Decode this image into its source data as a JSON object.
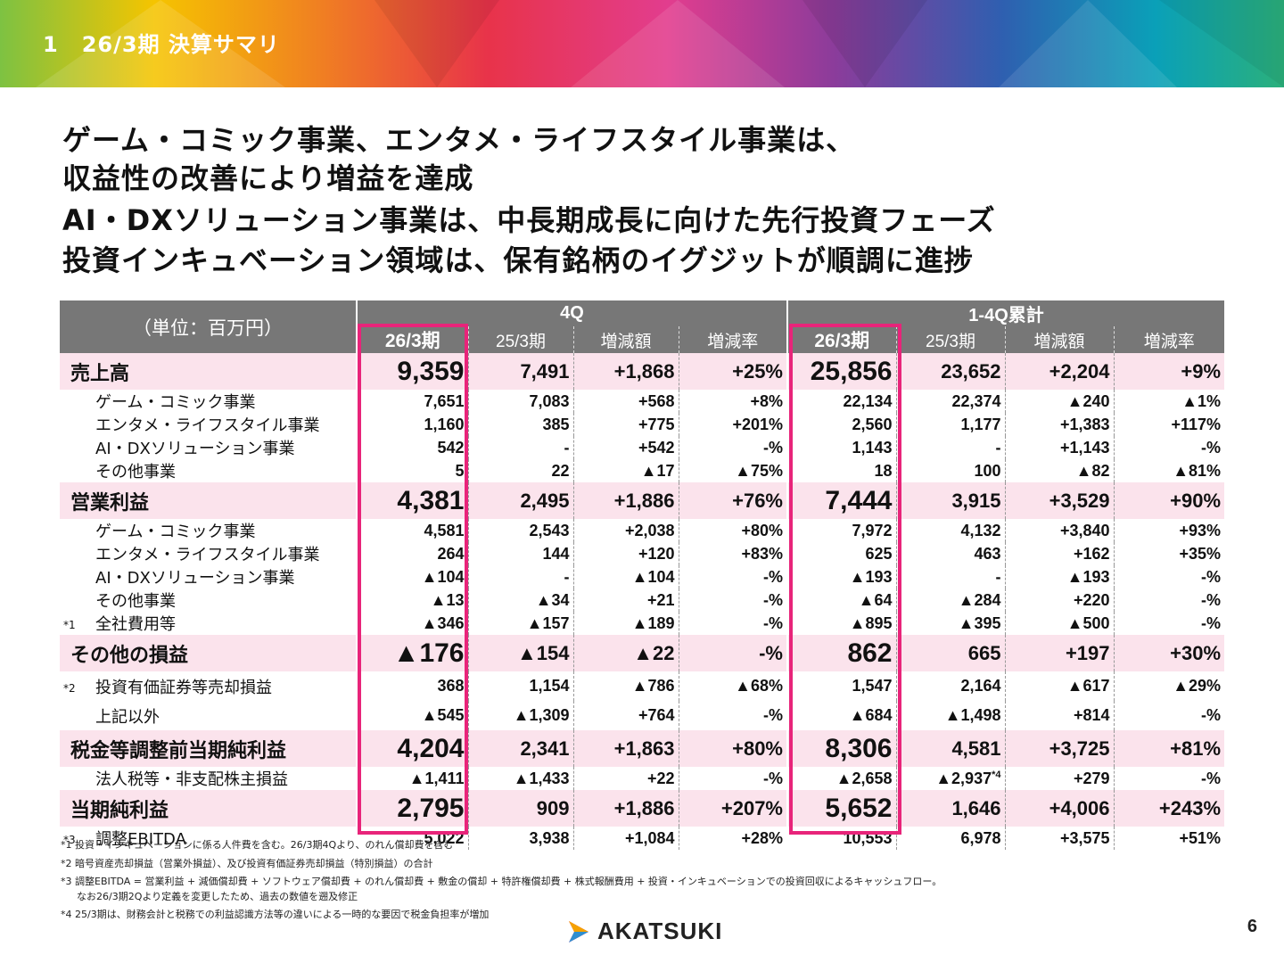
{
  "banner": {
    "section_number": "1",
    "title": "26/3期 決算サマリ"
  },
  "headlines": [
    "ゲーム・コミック事業、エンタメ・ライフスタイル事業は、",
    "収益性の改善により増益を達成",
    "AI・DXソリューション事業は、中長期成長に向けた先行投資フェーズ",
    "投資インキュベーション領域は、保有銘柄のイグジットが順調に進捗"
  ],
  "table": {
    "unit_label": "（単位：百万円）",
    "group_4q": "4Q",
    "group_cum": "1-4Q累計",
    "col_cur": "26/3期",
    "col_prev": "25/3期",
    "col_diff": "増減額",
    "col_rate": "増減率",
    "rows": [
      {
        "label": "売上高",
        "values": [
          "9,359",
          "7,491",
          "+1,868",
          "+25%",
          "25,856",
          "23,652",
          "+2,204",
          "+9%"
        ]
      },
      {
        "label": "ゲーム・コミック事業",
        "values": [
          "7,651",
          "7,083",
          "+568",
          "+8%",
          "22,134",
          "22,374",
          "▲240",
          "▲1%"
        ]
      },
      {
        "label": "エンタメ・ライフスタイル事業",
        "values": [
          "1,160",
          "385",
          "+775",
          "+201%",
          "2,560",
          "1,177",
          "+1,383",
          "+117%"
        ]
      },
      {
        "label": "AI・DXソリューション事業",
        "values": [
          "542",
          "-",
          "+542",
          "-%",
          "1,143",
          "-",
          "+1,143",
          "-%"
        ]
      },
      {
        "label": "その他事業",
        "values": [
          "5",
          "22",
          "▲17",
          "▲75%",
          "18",
          "100",
          "▲82",
          "▲81%"
        ]
      },
      {
        "label": "営業利益",
        "values": [
          "4,381",
          "2,495",
          "+1,886",
          "+76%",
          "7,444",
          "3,915",
          "+3,529",
          "+90%"
        ]
      },
      {
        "label": "ゲーム・コミック事業",
        "values": [
          "4,581",
          "2,543",
          "+2,038",
          "+80%",
          "7,972",
          "4,132",
          "+3,840",
          "+93%"
        ]
      },
      {
        "label": "エンタメ・ライフスタイル事業",
        "values": [
          "264",
          "144",
          "+120",
          "+83%",
          "625",
          "463",
          "+162",
          "+35%"
        ]
      },
      {
        "label": "AI・DXソリューション事業",
        "values": [
          "▲104",
          "-",
          "▲104",
          "-%",
          "▲193",
          "-",
          "▲193",
          "-%"
        ]
      },
      {
        "label": "その他事業",
        "values": [
          "▲13",
          "▲34",
          "+21",
          "-%",
          "▲64",
          "▲284",
          "+220",
          "-%"
        ]
      },
      {
        "label": "全社費用等",
        "note": "*1",
        "values": [
          "▲346",
          "▲157",
          "▲189",
          "-%",
          "▲895",
          "▲395",
          "▲500",
          "-%"
        ]
      },
      {
        "label": "その他の損益",
        "values": [
          "▲176",
          "▲154",
          "▲22",
          "-%",
          "862",
          "665",
          "+197",
          "+30%"
        ]
      },
      {
        "label": "投資有価証券等売却損益",
        "note": "*2",
        "values": [
          "368",
          "1,154",
          "▲786",
          "▲68%",
          "1,547",
          "2,164",
          "▲617",
          "▲29%"
        ]
      },
      {
        "label": "上記以外",
        "values": [
          "▲545",
          "▲1,309",
          "+764",
          "-%",
          "▲684",
          "▲1,498",
          "+814",
          "-%"
        ]
      },
      {
        "label": "税金等調整前当期純利益",
        "values": [
          "4,204",
          "2,341",
          "+1,863",
          "+80%",
          "8,306",
          "4,581",
          "+3,725",
          "+81%"
        ]
      },
      {
        "label": "法人税等・非支配株主損益",
        "values": [
          "▲1,411",
          "▲1,433",
          "+22",
          "-%",
          "▲2,658",
          "▲2,937",
          "+279",
          "-%"
        ],
        "sup_note": "*4"
      },
      {
        "label": "当期純利益",
        "values": [
          "2,795",
          "909",
          "+1,886",
          "+207%",
          "5,652",
          "1,646",
          "+4,006",
          "+243%"
        ]
      },
      {
        "label": "調整EBITDA",
        "note": "*3",
        "values": [
          "5,022",
          "3,938",
          "+1,084",
          "+28%",
          "10,553",
          "6,978",
          "+3,575",
          "+51%"
        ]
      }
    ]
  },
  "footnotes": [
    "*1 投資・インキュベーションに係る人件費を含む。26/3期4Qより、のれん償却費を含む",
    "*2 暗号資産売却損益（営業外損益）、及び投資有価証券売却損益（特別損益）の合計",
    "*3 調整EBITDA = 営業利益 + 減価償却費 + ソフトウェア償却費 + のれん償却費 + 敷金の償却 + 特許権償却費 + 株式報酬費用 + 投資・インキュベーションでの投資回収によるキャッシュフロー。",
    "なお26/3期2Qより定義を変更したため、過去の数値を遡及修正",
    "*4 25/3期は、財務会計と税務での利益認識方法等の違いによる一時的な要因で税金負担率が増加"
  ],
  "logo_text": "AKATSUKI",
  "page_number": "6",
  "colors": {
    "highlight": "#e8247a",
    "main_row_bg": "#fbe3ec",
    "header_bg": "#777777"
  }
}
